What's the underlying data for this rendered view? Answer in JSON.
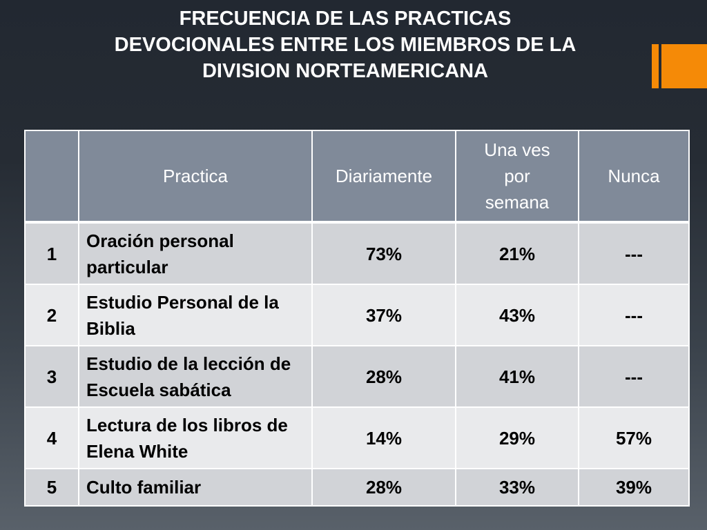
{
  "slide": {
    "title_lines": [
      "FRECUENCIA DE LAS PRACTICAS",
      "DEVOCIONALES ENTRE LOS MIEMBROS DE LA",
      "DIVISION NORTEAMERICANA"
    ],
    "accent_color": "#f58a07",
    "header_color": "#808a99"
  },
  "table": {
    "headers": {
      "num": "",
      "practice": "Practica",
      "daily": "Diariamente",
      "weekly_lines": [
        "Una ves",
        "por",
        "semana"
      ],
      "never": "Nunca"
    },
    "rows": [
      {
        "num": "1",
        "practice": "Oración personal particular",
        "daily": "73%",
        "weekly": "21%",
        "never": "---"
      },
      {
        "num": "2",
        "practice": "Estudio Personal de la Biblia",
        "daily": "37%",
        "weekly": "43%",
        "never": "---"
      },
      {
        "num": "3",
        "practice": "Estudio de la lección de Escuela sabática",
        "daily": "28%",
        "weekly": "41%",
        "never": "---"
      },
      {
        "num": "4",
        "practice": "Lectura de los libros de Elena White",
        "daily": "14%",
        "weekly": "29%",
        "never": "57%"
      },
      {
        "num": "5",
        "practice": "Culto familiar",
        "daily": "28%",
        "weekly": "33%",
        "never": "39%"
      }
    ]
  }
}
